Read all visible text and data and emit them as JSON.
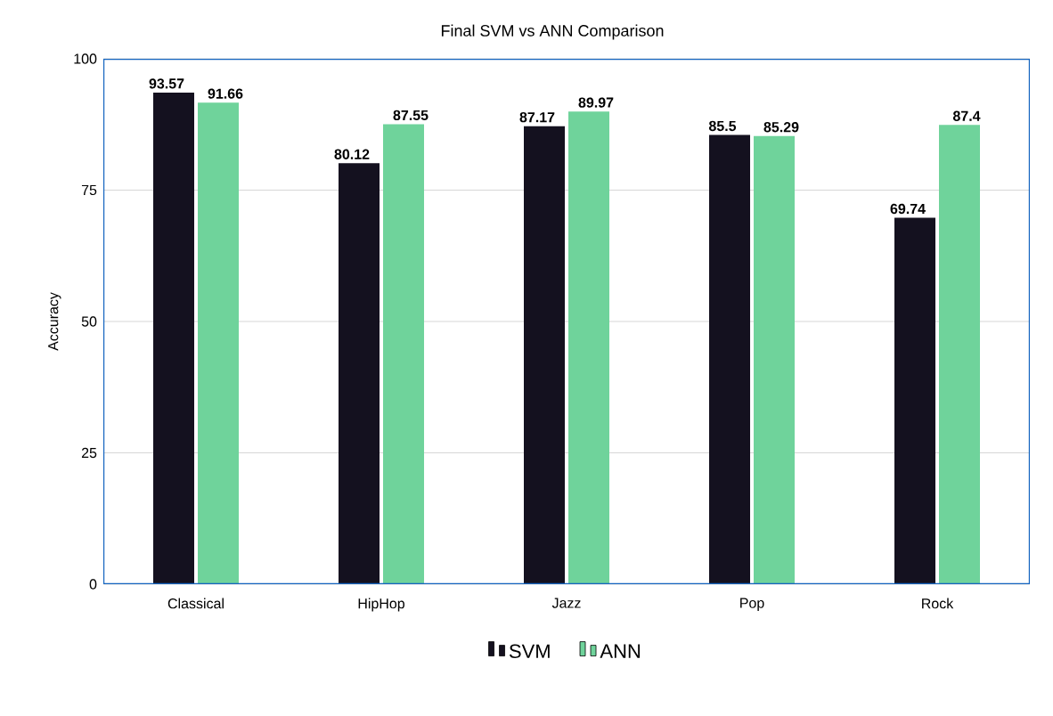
{
  "chart_data": {
    "type": "bar",
    "title": "Final SVM vs ANN Comparison",
    "ylabel": "Accuracy",
    "categories": [
      "Classical",
      "HipHop",
      "Jazz",
      "Pop",
      "Rock"
    ],
    "series": [
      {
        "name": "SVM",
        "color": "#14111f",
        "values": [
          93.57,
          80.12,
          87.17,
          85.5,
          69.74
        ]
      },
      {
        "name": "ANN",
        "color": "#6fd39b",
        "values": [
          91.66,
          87.55,
          89.97,
          85.29,
          87.4
        ]
      }
    ],
    "ylim": [
      0,
      100
    ],
    "yticks": [
      0,
      25,
      50,
      75,
      100
    ],
    "grid": "y",
    "legend": "bottom",
    "data_labels": true
  }
}
